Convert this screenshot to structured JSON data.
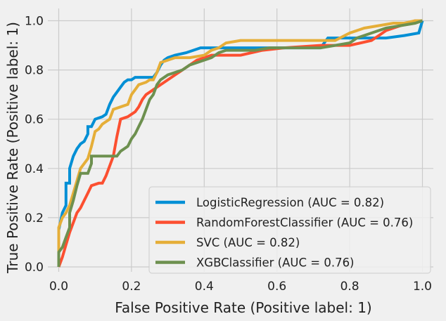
{
  "chart_data": {
    "type": "line",
    "title": "",
    "xlabel": "False Positive Rate (Positive label: 1)",
    "ylabel": "True Positive Rate (Positive label: 1)",
    "xlim": [
      -0.03,
      1.03
    ],
    "ylim": [
      -0.02,
      1.05
    ],
    "xticks": [
      0.0,
      0.2,
      0.4,
      0.6,
      0.8,
      1.0
    ],
    "xtick_labels": [
      "0.0",
      "0.2",
      "0.4",
      "0.6",
      "0.8",
      "1.0"
    ],
    "yticks": [
      0.0,
      0.2,
      0.4,
      0.6,
      0.8,
      1.0
    ],
    "ytick_labels": [
      "0.0",
      "0.2",
      "0.4",
      "0.6",
      "0.8",
      "1.0"
    ],
    "grid": true,
    "legend_position": "lower-right",
    "series": [
      {
        "name": "LogisticRegression (AUC = 0.82)",
        "color": "#008fd5",
        "points": [
          [
            0,
            0
          ],
          [
            0,
            0.15
          ],
          [
            0.01,
            0.22
          ],
          [
            0.02,
            0.25
          ],
          [
            0.02,
            0.34
          ],
          [
            0.03,
            0.34
          ],
          [
            0.03,
            0.4
          ],
          [
            0.04,
            0.45
          ],
          [
            0.05,
            0.48
          ],
          [
            0.06,
            0.5
          ],
          [
            0.07,
            0.51
          ],
          [
            0.08,
            0.54
          ],
          [
            0.08,
            0.57
          ],
          [
            0.09,
            0.57
          ],
          [
            0.1,
            0.6
          ],
          [
            0.12,
            0.61
          ],
          [
            0.13,
            0.62
          ],
          [
            0.14,
            0.66
          ],
          [
            0.15,
            0.69
          ],
          [
            0.16,
            0.71
          ],
          [
            0.17,
            0.73
          ],
          [
            0.18,
            0.75
          ],
          [
            0.19,
            0.76
          ],
          [
            0.2,
            0.76
          ],
          [
            0.21,
            0.77
          ],
          [
            0.26,
            0.77
          ],
          [
            0.27,
            0.79
          ],
          [
            0.28,
            0.82
          ],
          [
            0.29,
            0.84
          ],
          [
            0.3,
            0.85
          ],
          [
            0.32,
            0.86
          ],
          [
            0.35,
            0.87
          ],
          [
            0.37,
            0.88
          ],
          [
            0.39,
            0.89
          ],
          [
            0.4,
            0.89
          ],
          [
            0.42,
            0.89
          ],
          [
            0.55,
            0.89
          ],
          [
            0.57,
            0.89
          ],
          [
            0.6,
            0.89
          ],
          [
            0.72,
            0.89
          ],
          [
            0.74,
            0.93
          ],
          [
            0.8,
            0.93
          ],
          [
            0.82,
            0.93
          ],
          [
            0.9,
            0.93
          ],
          [
            0.95,
            0.94
          ],
          [
            0.99,
            0.95
          ],
          [
            1.0,
            1.0
          ]
        ]
      },
      {
        "name": "RandomForestClassifier (AUC = 0.76)",
        "color": "#fc4f30",
        "points": [
          [
            0,
            0
          ],
          [
            0.01,
            0.04
          ],
          [
            0.02,
            0.09
          ],
          [
            0.03,
            0.14
          ],
          [
            0.04,
            0.18
          ],
          [
            0.05,
            0.22
          ],
          [
            0.06,
            0.24
          ],
          [
            0.07,
            0.27
          ],
          [
            0.08,
            0.3
          ],
          [
            0.09,
            0.33
          ],
          [
            0.11,
            0.34
          ],
          [
            0.12,
            0.34
          ],
          [
            0.13,
            0.37
          ],
          [
            0.14,
            0.41
          ],
          [
            0.15,
            0.45
          ],
          [
            0.16,
            0.53
          ],
          [
            0.17,
            0.6
          ],
          [
            0.19,
            0.61
          ],
          [
            0.21,
            0.63
          ],
          [
            0.22,
            0.65
          ],
          [
            0.23,
            0.68
          ],
          [
            0.24,
            0.7
          ],
          [
            0.26,
            0.72
          ],
          [
            0.28,
            0.74
          ],
          [
            0.3,
            0.76
          ],
          [
            0.32,
            0.78
          ],
          [
            0.34,
            0.8
          ],
          [
            0.36,
            0.82
          ],
          [
            0.38,
            0.84
          ],
          [
            0.4,
            0.85
          ],
          [
            0.42,
            0.86
          ],
          [
            0.48,
            0.86
          ],
          [
            0.5,
            0.86
          ],
          [
            0.56,
            0.88
          ],
          [
            0.62,
            0.89
          ],
          [
            0.72,
            0.9
          ],
          [
            0.8,
            0.9
          ],
          [
            0.86,
            0.92
          ],
          [
            0.88,
            0.94
          ],
          [
            0.9,
            0.96
          ],
          [
            0.92,
            0.97
          ],
          [
            0.94,
            0.98
          ],
          [
            0.96,
            0.99
          ],
          [
            0.98,
            1.0
          ],
          [
            1.0,
            1.0
          ]
        ]
      },
      {
        "name": "SVC (AUC = 0.82)",
        "color": "#e5ae38",
        "points": [
          [
            0,
            0
          ],
          [
            0,
            0.16
          ],
          [
            0.01,
            0.2
          ],
          [
            0.02,
            0.22
          ],
          [
            0.03,
            0.25
          ],
          [
            0.04,
            0.3
          ],
          [
            0.05,
            0.35
          ],
          [
            0.06,
            0.4
          ],
          [
            0.08,
            0.44
          ],
          [
            0.09,
            0.49
          ],
          [
            0.1,
            0.55
          ],
          [
            0.11,
            0.56
          ],
          [
            0.12,
            0.58
          ],
          [
            0.14,
            0.6
          ],
          [
            0.15,
            0.64
          ],
          [
            0.17,
            0.65
          ],
          [
            0.19,
            0.66
          ],
          [
            0.2,
            0.7
          ],
          [
            0.21,
            0.72
          ],
          [
            0.22,
            0.74
          ],
          [
            0.24,
            0.75
          ],
          [
            0.25,
            0.76
          ],
          [
            0.26,
            0.76
          ],
          [
            0.27,
            0.79
          ],
          [
            0.28,
            0.83
          ],
          [
            0.3,
            0.84
          ],
          [
            0.32,
            0.85
          ],
          [
            0.36,
            0.85
          ],
          [
            0.4,
            0.86
          ],
          [
            0.42,
            0.88
          ],
          [
            0.44,
            0.89
          ],
          [
            0.46,
            0.91
          ],
          [
            0.5,
            0.92
          ],
          [
            0.56,
            0.92
          ],
          [
            0.6,
            0.92
          ],
          [
            0.7,
            0.92
          ],
          [
            0.76,
            0.92
          ],
          [
            0.8,
            0.95
          ],
          [
            0.84,
            0.97
          ],
          [
            0.88,
            0.98
          ],
          [
            0.92,
            0.99
          ],
          [
            0.95,
            0.99
          ],
          [
            0.98,
            1.0
          ],
          [
            1.0,
            1.0
          ]
        ]
      },
      {
        "name": "XGBClassifier (AUC = 0.76)",
        "color": "#6d904f",
        "points": [
          [
            0,
            0
          ],
          [
            0,
            0.06
          ],
          [
            0.01,
            0.08
          ],
          [
            0.02,
            0.12
          ],
          [
            0.03,
            0.16
          ],
          [
            0.03,
            0.22
          ],
          [
            0.04,
            0.27
          ],
          [
            0.05,
            0.33
          ],
          [
            0.06,
            0.38
          ],
          [
            0.08,
            0.38
          ],
          [
            0.09,
            0.42
          ],
          [
            0.09,
            0.45
          ],
          [
            0.12,
            0.45
          ],
          [
            0.16,
            0.45
          ],
          [
            0.17,
            0.47
          ],
          [
            0.19,
            0.49
          ],
          [
            0.2,
            0.52
          ],
          [
            0.21,
            0.54
          ],
          [
            0.22,
            0.57
          ],
          [
            0.23,
            0.6
          ],
          [
            0.24,
            0.64
          ],
          [
            0.25,
            0.68
          ],
          [
            0.26,
            0.7
          ],
          [
            0.27,
            0.74
          ],
          [
            0.28,
            0.76
          ],
          [
            0.3,
            0.78
          ],
          [
            0.32,
            0.79
          ],
          [
            0.34,
            0.8
          ],
          [
            0.36,
            0.82
          ],
          [
            0.38,
            0.83
          ],
          [
            0.4,
            0.84
          ],
          [
            0.42,
            0.85
          ],
          [
            0.44,
            0.87
          ],
          [
            0.46,
            0.88
          ],
          [
            0.54,
            0.88
          ],
          [
            0.58,
            0.89
          ],
          [
            0.66,
            0.89
          ],
          [
            0.72,
            0.89
          ],
          [
            0.76,
            0.9
          ],
          [
            0.8,
            0.91
          ],
          [
            0.82,
            0.93
          ],
          [
            0.86,
            0.95
          ],
          [
            0.9,
            0.97
          ],
          [
            0.94,
            0.98
          ],
          [
            0.98,
            0.99
          ],
          [
            1.0,
            1.0
          ]
        ]
      }
    ]
  }
}
